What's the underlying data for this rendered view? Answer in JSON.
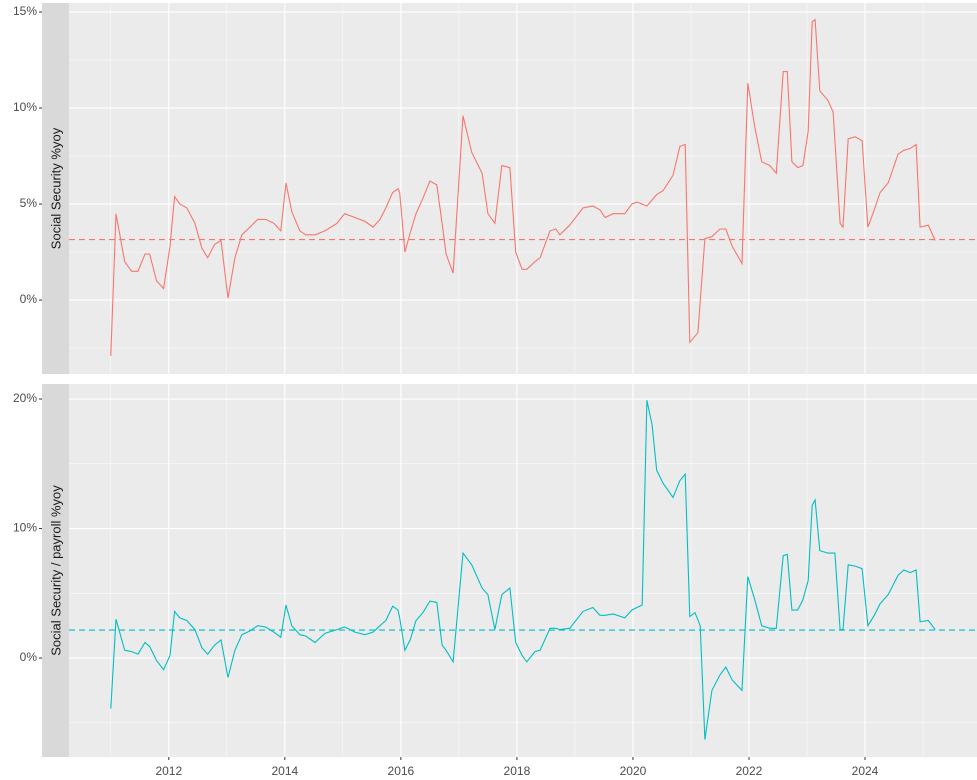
{
  "chart_data": [
    {
      "type": "line",
      "ylabel": "Social Security %yoy",
      "color": "#f8766d",
      "hline": 3.15,
      "xlim": [
        2010.28,
        2025.93
      ],
      "xticks": [
        2012,
        2014,
        2016,
        2018,
        2020,
        2022,
        2024
      ],
      "xminor": [
        2011,
        2013,
        2015,
        2017,
        2019,
        2021,
        2023,
        2025
      ],
      "ylim": [
        -3.85,
        15.47
      ],
      "yticks": [
        {
          "value": 0,
          "label": "0%"
        },
        {
          "value": 5,
          "label": "5%"
        },
        {
          "value": 10,
          "label": "10%"
        },
        {
          "value": 15,
          "label": "15%"
        }
      ],
      "yminor": [
        -2.5,
        2.5,
        7.5,
        12.5
      ],
      "x": [
        2011.0,
        2011.09,
        2011.24,
        2011.36,
        2011.47,
        2011.59,
        2011.67,
        2011.79,
        2011.91,
        2012.02,
        2012.1,
        2012.19,
        2012.31,
        2012.45,
        2012.57,
        2012.67,
        2012.79,
        2012.9,
        2013.02,
        2013.14,
        2013.26,
        2013.4,
        2013.53,
        2013.67,
        2013.81,
        2013.93,
        2014.02,
        2014.12,
        2014.26,
        2014.36,
        2014.52,
        2014.69,
        2014.9,
        2015.03,
        2015.21,
        2015.38,
        2015.52,
        2015.64,
        2015.74,
        2015.86,
        2015.95,
        2015.98,
        2016.07,
        2016.16,
        2016.26,
        2016.38,
        2016.5,
        2016.62,
        2016.71,
        2016.78,
        2016.9,
        2017.07,
        2017.22,
        2017.4,
        2017.5,
        2017.62,
        2017.74,
        2017.88,
        2017.98,
        2018.09,
        2018.17,
        2018.31,
        2018.4,
        2018.57,
        2018.67,
        2018.74,
        2018.91,
        2019.14,
        2019.31,
        2019.43,
        2019.52,
        2019.66,
        2019.86,
        2019.98,
        2020.07,
        2020.24,
        2020.41,
        2020.52,
        2020.69,
        2020.81,
        2020.9,
        2020.98,
        2021.12,
        2021.24,
        2021.36,
        2021.5,
        2021.6,
        2021.71,
        2021.88,
        2021.98,
        2022.1,
        2022.22,
        2022.36,
        2022.47,
        2022.59,
        2022.66,
        2022.74,
        2022.84,
        2022.93,
        2023.02,
        2023.09,
        2023.14,
        2023.22,
        2023.36,
        2023.45,
        2023.57,
        2023.62,
        2023.71,
        2023.83,
        2023.95,
        2024.05,
        2024.16,
        2024.26,
        2024.4,
        2024.57,
        2024.67,
        2024.78,
        2024.88,
        2024.95,
        2025.09,
        2025.21
      ],
      "values": [
        -2.9,
        4.5,
        2.0,
        1.5,
        1.5,
        2.4,
        2.4,
        1.0,
        0.6,
        2.8,
        5.4,
        5.0,
        4.8,
        4.0,
        2.7,
        2.2,
        2.9,
        3.1,
        0.1,
        2.2,
        3.4,
        3.8,
        4.2,
        4.2,
        4.0,
        3.6,
        6.1,
        4.6,
        3.6,
        3.4,
        3.4,
        3.6,
        4.0,
        4.5,
        4.3,
        4.1,
        3.8,
        4.2,
        4.8,
        5.6,
        5.8,
        5.6,
        2.5,
        3.5,
        4.5,
        5.3,
        6.2,
        6.0,
        4.0,
        2.4,
        1.4,
        9.6,
        7.7,
        6.6,
        4.5,
        4.0,
        7.0,
        6.9,
        2.5,
        1.6,
        1.6,
        2.0,
        2.2,
        3.6,
        3.7,
        3.4,
        3.9,
        4.8,
        4.9,
        4.7,
        4.3,
        4.5,
        4.5,
        5.0,
        5.1,
        4.9,
        5.5,
        5.7,
        6.5,
        8.0,
        8.1,
        -2.2,
        -1.7,
        3.2,
        3.3,
        3.7,
        3.7,
        2.8,
        1.9,
        11.3,
        9.0,
        7.2,
        7.0,
        6.6,
        11.9,
        11.9,
        7.2,
        6.9,
        7.0,
        8.8,
        14.5,
        14.6,
        10.9,
        10.4,
        9.8,
        4.0,
        3.8,
        8.4,
        8.5,
        8.3,
        3.8,
        4.7,
        5.6,
        6.1,
        7.6,
        7.8,
        7.9,
        8.1,
        3.8,
        3.9,
        3.1
      ]
    },
    {
      "type": "line",
      "ylabel": "Social Security / payroll %yoy",
      "color": "#00bfc4",
      "hline": 2.16,
      "xlim": [
        2010.28,
        2025.93
      ],
      "xticks": [
        2012,
        2014,
        2016,
        2018,
        2020,
        2022,
        2024
      ],
      "xminor": [
        2011,
        2013,
        2015,
        2017,
        2019,
        2021,
        2023,
        2025
      ],
      "ylim": [
        -7.64,
        21.16
      ],
      "yticks": [
        {
          "value": 0,
          "label": "0%"
        },
        {
          "value": 10,
          "label": "10%"
        },
        {
          "value": 20,
          "label": "20%"
        }
      ],
      "yminor": [
        -5,
        5,
        15
      ],
      "x": [
        2011.0,
        2011.09,
        2011.24,
        2011.36,
        2011.47,
        2011.59,
        2011.67,
        2011.79,
        2011.91,
        2012.02,
        2012.1,
        2012.19,
        2012.31,
        2012.45,
        2012.57,
        2012.67,
        2012.79,
        2012.9,
        2013.02,
        2013.14,
        2013.26,
        2013.4,
        2013.53,
        2013.67,
        2013.81,
        2013.93,
        2014.02,
        2014.12,
        2014.26,
        2014.36,
        2014.52,
        2014.69,
        2014.9,
        2015.03,
        2015.21,
        2015.38,
        2015.52,
        2015.64,
        2015.74,
        2015.86,
        2015.95,
        2015.98,
        2016.07,
        2016.16,
        2016.26,
        2016.38,
        2016.5,
        2016.62,
        2016.71,
        2016.78,
        2016.9,
        2017.07,
        2017.22,
        2017.4,
        2017.5,
        2017.62,
        2017.74,
        2017.88,
        2017.98,
        2018.09,
        2018.17,
        2018.31,
        2018.4,
        2018.57,
        2018.67,
        2018.74,
        2018.91,
        2019.14,
        2019.31,
        2019.43,
        2019.52,
        2019.66,
        2019.86,
        2019.98,
        2020.07,
        2020.16,
        2020.24,
        2020.33,
        2020.41,
        2020.52,
        2020.69,
        2020.81,
        2020.9,
        2020.98,
        2021.07,
        2021.16,
        2021.24,
        2021.36,
        2021.5,
        2021.6,
        2021.71,
        2021.88,
        2021.98,
        2022.1,
        2022.22,
        2022.36,
        2022.47,
        2022.59,
        2022.66,
        2022.74,
        2022.84,
        2022.93,
        2023.02,
        2023.09,
        2023.14,
        2023.22,
        2023.36,
        2023.48,
        2023.57,
        2023.62,
        2023.71,
        2023.83,
        2023.95,
        2024.05,
        2024.16,
        2024.26,
        2024.4,
        2024.57,
        2024.67,
        2024.78,
        2024.88,
        2024.95,
        2025.09,
        2025.21
      ],
      "values": [
        -3.9,
        3.0,
        0.6,
        0.5,
        0.3,
        1.2,
        0.9,
        -0.2,
        -0.9,
        0.2,
        3.6,
        3.1,
        2.9,
        2.2,
        0.8,
        0.3,
        1.0,
        1.4,
        -1.5,
        0.6,
        1.8,
        2.1,
        2.5,
        2.4,
        2.0,
        1.6,
        4.1,
        2.5,
        1.8,
        1.7,
        1.2,
        1.9,
        2.2,
        2.4,
        2.0,
        1.8,
        2.0,
        2.5,
        2.9,
        4.0,
        3.7,
        3.1,
        0.6,
        1.4,
        2.9,
        3.5,
        4.4,
        4.3,
        1.0,
        0.6,
        -0.3,
        8.1,
        7.2,
        5.4,
        4.9,
        2.2,
        4.9,
        5.4,
        1.2,
        0.2,
        -0.3,
        0.5,
        0.6,
        2.3,
        2.3,
        2.2,
        2.3,
        3.6,
        3.9,
        3.3,
        3.3,
        3.4,
        3.1,
        3.7,
        3.9,
        4.1,
        19.9,
        18.0,
        14.5,
        13.5,
        12.4,
        13.7,
        14.2,
        3.2,
        3.5,
        2.5,
        -6.3,
        -2.5,
        -1.3,
        -0.7,
        -1.7,
        -2.5,
        6.3,
        4.5,
        2.5,
        2.3,
        2.3,
        7.9,
        8.0,
        3.7,
        3.7,
        4.5,
        6.0,
        11.8,
        12.2,
        8.3,
        8.1,
        8.1,
        2.2,
        2.2,
        7.2,
        7.1,
        6.9,
        2.5,
        3.3,
        4.2,
        4.9,
        6.4,
        6.8,
        6.6,
        6.8,
        2.8,
        2.9,
        2.2
      ]
    }
  ]
}
